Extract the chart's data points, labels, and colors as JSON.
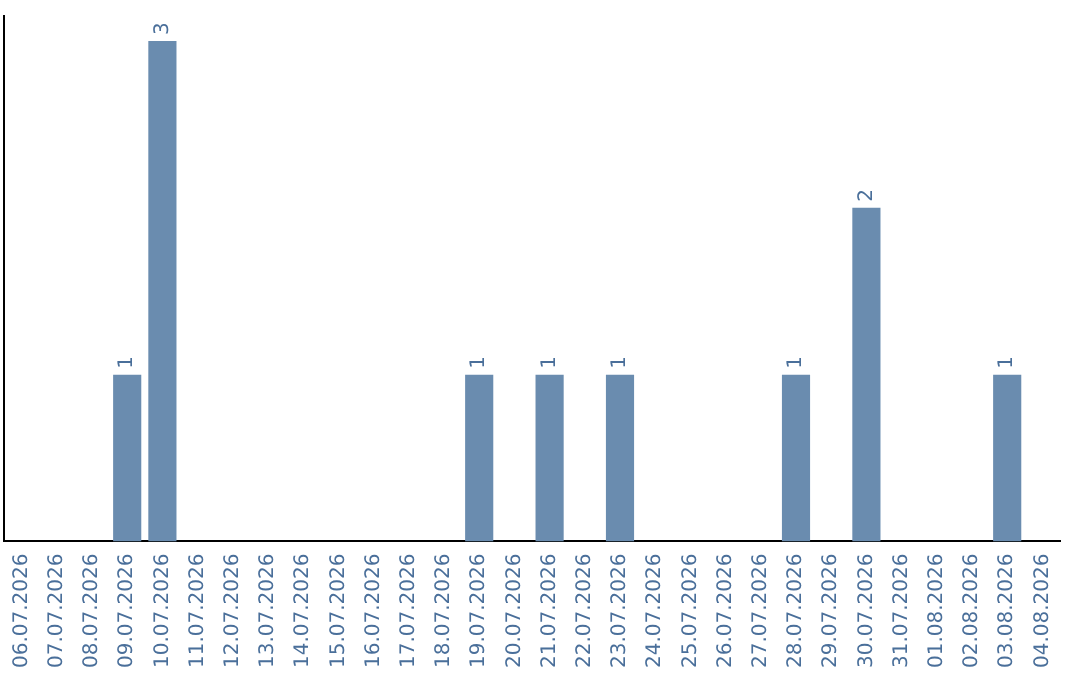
{
  "chart_data": {
    "type": "bar",
    "categories": [
      "06.07.2026",
      "07.07.2026",
      "08.07.2026",
      "09.07.2026",
      "10.07.2026",
      "11.07.2026",
      "12.07.2026",
      "13.07.2026",
      "14.07.2026",
      "15.07.2026",
      "16.07.2026",
      "17.07.2026",
      "18.07.2026",
      "19.07.2026",
      "20.07.2026",
      "21.07.2026",
      "22.07.2026",
      "23.07.2026",
      "24.07.2026",
      "25.07.2026",
      "26.07.2026",
      "27.07.2026",
      "28.07.2026",
      "29.07.2026",
      "30.07.2026",
      "31.07.2026",
      "01.08.2026",
      "02.08.2026",
      "03.08.2026",
      "04.08.2026"
    ],
    "values": [
      0,
      0,
      0,
      1,
      3,
      0,
      0,
      0,
      0,
      0,
      0,
      0,
      0,
      1,
      0,
      1,
      0,
      1,
      0,
      0,
      0,
      0,
      1,
      0,
      2,
      0,
      0,
      0,
      1,
      0
    ],
    "value_labels": [
      null,
      null,
      null,
      "1",
      "3",
      null,
      null,
      null,
      null,
      null,
      null,
      null,
      null,
      "1",
      null,
      "1",
      null,
      "1",
      null,
      null,
      null,
      null,
      "1",
      null,
      "2",
      null,
      null,
      null,
      "1",
      null
    ],
    "color": "#6a8caf",
    "ylim": [
      0,
      3.15
    ],
    "tick_labels": "x",
    "grid": false,
    "legend": false
  }
}
